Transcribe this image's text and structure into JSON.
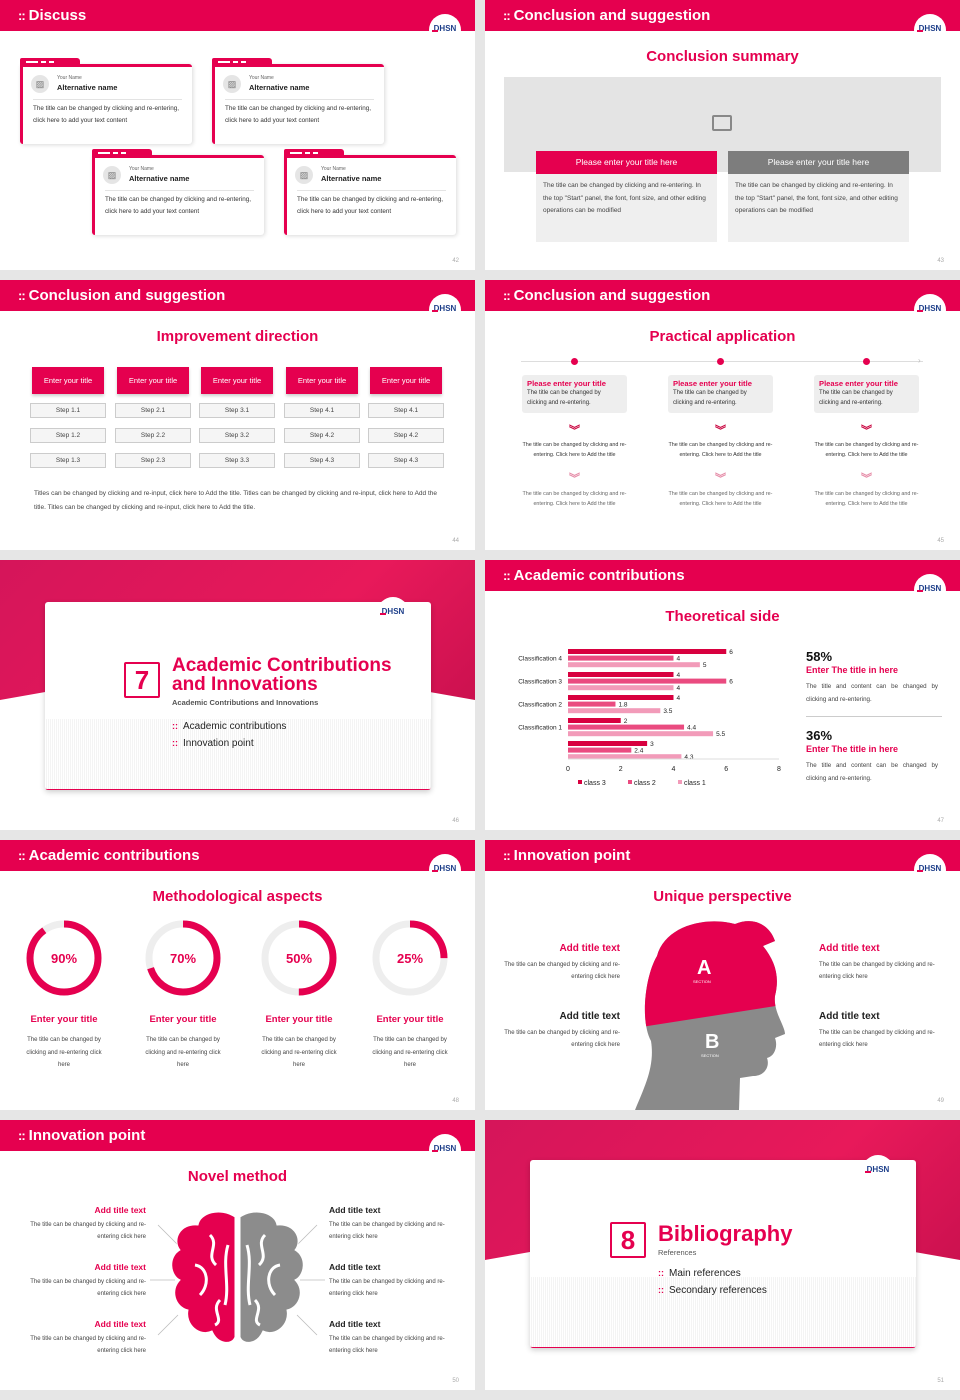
{
  "logo_text": "DHSN",
  "accent_color": "#e5004f",
  "s42": {
    "header": "Discuss",
    "page": "42",
    "cards": [
      {
        "label": "Your Name",
        "name": "Alternative name",
        "text": "The title can be changed by clicking and re-entering, click here to add your text content"
      },
      {
        "label": "Your Name",
        "name": "Alternative name",
        "text": "The title can be changed by clicking and re-entering, click here to add your text content"
      },
      {
        "label": "Your Name",
        "name": "Alternative name",
        "text": "The title can be changed by clicking and re-entering, click here to add your text content"
      },
      {
        "label": "Your Name",
        "name": "Alternative name",
        "text": "The title can be changed by clicking and re-entering, click here to add your text content"
      }
    ]
  },
  "s43": {
    "header": "Conclusion and suggestion",
    "title": "Conclusion summary",
    "page": "43",
    "panels": [
      {
        "title": "Please enter your title here",
        "text": "The title can be changed by clicking and re-entering. In the top \"Start\" panel, the font, font size, and other editing operations can be modified"
      },
      {
        "title": "Please enter your title here",
        "text": "The title can be changed by clicking and re-entering. In the top \"Start\" panel, the font, font size, and other editing operations can be modified"
      }
    ]
  },
  "s44": {
    "header": "Conclusion and suggestion",
    "title": "Improvement direction",
    "page": "44",
    "columns": [
      {
        "title": "Enter your title",
        "steps": [
          "Step 1.1",
          "Step 1.2",
          "Step 1.3"
        ]
      },
      {
        "title": "Enter your title",
        "steps": [
          "Step 2.1",
          "Step 2.2",
          "Step 2.3"
        ]
      },
      {
        "title": "Enter your title",
        "steps": [
          "Step 3.1",
          "Step 3.2",
          "Step 3.3"
        ]
      },
      {
        "title": "Enter your title",
        "steps": [
          "Step 4.1",
          "Step 4.2",
          "Step 4.3"
        ]
      },
      {
        "title": "Enter your title",
        "steps": [
          "Step 4.1",
          "Step 4.2",
          "Step 4.3"
        ]
      }
    ],
    "text": "Titles can be changed by clicking and re-input, click here to Add the title. Titles can be changed by clicking and re-input, click here to Add the title. Titles can be changed by clicking and re-input, click here to Add the title."
  },
  "s45": {
    "header": "Conclusion and suggestion",
    "title": "Practical application",
    "page": "45",
    "items": [
      {
        "title": "Please enter your title",
        "text": "The title can be changed by clicking and re-entering.",
        "step1": "The title can be changed by clicking and re-entering. Click here to Add the title",
        "step2": "The title can be changed by clicking and re-entering. Click here to Add the title"
      },
      {
        "title": "Please enter your title",
        "text": "The title can be changed by clicking and re-entering.",
        "step1": "The title can be changed by clicking and re-entering. Click here to Add the title",
        "step2": "The title can be changed by clicking and re-entering. Click here to Add the title"
      },
      {
        "title": "Please enter your title",
        "text": "The title can be changed by clicking and re-entering.",
        "step1": "The title can be changed by clicking and re-entering. Click here to Add the title",
        "step2": "The title can be changed by clicking and re-entering. Click here to Add the title"
      }
    ]
  },
  "s46": {
    "number": "7",
    "title": "Academic Contributions and Innovations",
    "subtitle": "Academic Contributions and Innovations",
    "page": "46",
    "items": [
      "Academic contributions",
      "Innovation point"
    ]
  },
  "s47": {
    "header": "Academic contributions",
    "title": "Theoretical side",
    "page": "47",
    "stats": [
      {
        "value": "58%",
        "title": "Enter The title in here",
        "text": "The title and content can be changed by clicking and re-entering."
      },
      {
        "value": "36%",
        "title": "Enter The title in here",
        "text": "The title and content can be changed by clicking and re-entering."
      }
    ]
  },
  "chart_data": {
    "type": "bar",
    "orientation": "horizontal",
    "categories": [
      "Classification 4",
      "Classification 3",
      "Classification 2",
      "Classification 1",
      ""
    ],
    "series": [
      {
        "name": "class 3",
        "color": "#d8003f",
        "values": [
          6,
          4,
          4,
          2,
          3
        ]
      },
      {
        "name": "class 2",
        "color": "#ea4b80",
        "values": [
          4,
          6,
          1.8,
          4.4,
          2.4
        ]
      },
      {
        "name": "class 1",
        "color": "#f29bb9",
        "values": [
          5,
          4,
          3.5,
          5.5,
          4.3
        ]
      }
    ],
    "xlim": [
      0,
      8
    ],
    "xticks": [
      "0",
      "2",
      "4",
      "6",
      "8"
    ],
    "data_labels": true,
    "grid": false,
    "legend": "bottom"
  },
  "s48": {
    "header": "Academic contributions",
    "title": "Methodological aspects",
    "page": "48",
    "rings": [
      {
        "value": 90,
        "label": "90%",
        "title": "Enter your title",
        "text": "The title can be changed by clicking and re-entering click here"
      },
      {
        "value": 70,
        "label": "70%",
        "title": "Enter your title",
        "text": "The title can be changed by clicking and re-entering click here"
      },
      {
        "value": 50,
        "label": "50%",
        "title": "Enter your title",
        "text": "The title can be changed by clicking and re-entering click here"
      },
      {
        "value": 25,
        "label": "25%",
        "title": "Enter your title",
        "text": "The title can be changed by clicking and re-entering click here"
      }
    ]
  },
  "s49": {
    "header": "Innovation point",
    "title": "Unique perspective",
    "page": "49",
    "head_a": "A",
    "head_b": "B",
    "section_label": "SECTION",
    "left": [
      {
        "title": "Add title text",
        "text": "The title can be changed by clicking and re-entering click here"
      },
      {
        "title": "Add title text",
        "text": "The title can be changed by clicking and re-entering click here"
      }
    ],
    "right": [
      {
        "title": "Add title text",
        "text": "The title can be changed by clicking and re-entering click here"
      },
      {
        "title": "Add title text",
        "text": "The title can be changed by clicking and re-entering click here"
      }
    ]
  },
  "s50": {
    "header": "Innovation point",
    "title": "Novel method",
    "page": "50",
    "left": [
      {
        "title": "Add title text",
        "text": "The title can be changed by clicking and re-entering click here"
      },
      {
        "title": "Add title text",
        "text": "The title can be changed by clicking and re-entering click here"
      },
      {
        "title": "Add title text",
        "text": "The title can be changed by clicking and re-entering click here"
      }
    ],
    "right": [
      {
        "title": "Add title text",
        "text": "The title can be changed by clicking and re-entering click here"
      },
      {
        "title": "Add title text",
        "text": "The title can be changed by clicking and re-entering click here"
      },
      {
        "title": "Add title text",
        "text": "The title can be changed by clicking and re-entering click here"
      }
    ]
  },
  "s51": {
    "number": "8",
    "title": "Bibliography",
    "subtitle": "References",
    "page": "51",
    "items": [
      "Main references",
      "Secondary references"
    ]
  }
}
